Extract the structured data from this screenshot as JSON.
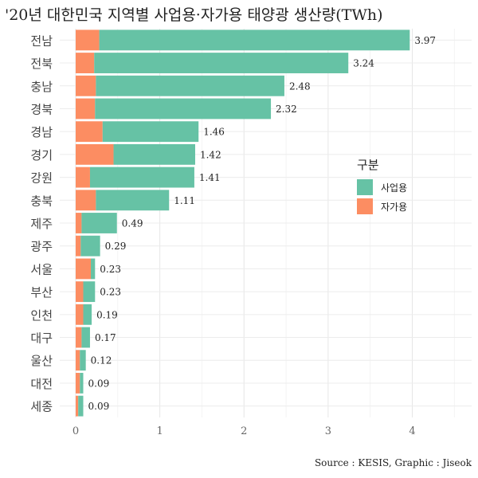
{
  "title": "'20년 대한민국 지역별 사업용·자가용 태양광 생산량(TWh)",
  "caption": "Source : KESIS, Graphic : Jiseok",
  "legend": {
    "title": "구분",
    "items": [
      {
        "label": "사업용",
        "color": "#66c2a5"
      },
      {
        "label": "자가용",
        "color": "#fc8d62"
      }
    ]
  },
  "chart_data": {
    "type": "bar",
    "orientation": "horizontal",
    "stacked": true,
    "xlim": [
      0,
      4.5
    ],
    "xticks": [
      0,
      1,
      2,
      3,
      4
    ],
    "grid": true,
    "categories": [
      "전남",
      "전북",
      "충남",
      "경북",
      "경남",
      "경기",
      "강원",
      "충북",
      "제주",
      "광주",
      "서울",
      "부산",
      "인천",
      "대구",
      "울산",
      "대전",
      "세종"
    ],
    "series": [
      {
        "name": "자가용",
        "color": "#fc8d62",
        "values": [
          0.28,
          0.22,
          0.24,
          0.23,
          0.32,
          0.45,
          0.17,
          0.24,
          0.07,
          0.06,
          0.18,
          0.09,
          0.09,
          0.07,
          0.05,
          0.05,
          0.03
        ]
      },
      {
        "name": "사업용",
        "color": "#66c2a5",
        "values": [
          3.69,
          3.02,
          2.24,
          2.09,
          1.14,
          0.97,
          1.24,
          0.87,
          0.42,
          0.23,
          0.05,
          0.14,
          0.1,
          0.1,
          0.07,
          0.04,
          0.06
        ]
      }
    ],
    "totals": [
      3.97,
      3.24,
      2.48,
      2.32,
      1.46,
      1.42,
      1.41,
      1.11,
      0.49,
      0.29,
      0.23,
      0.23,
      0.19,
      0.17,
      0.12,
      0.09,
      0.09
    ],
    "total_labels": [
      "3.97",
      "3.24",
      "2.48",
      "2.32",
      "1.46",
      "1.42",
      "1.41",
      "1.11",
      "0.49",
      "0.29",
      "0.23",
      "0.23",
      "0.19",
      "0.17",
      "0.12",
      "0.09",
      "0.09"
    ]
  }
}
